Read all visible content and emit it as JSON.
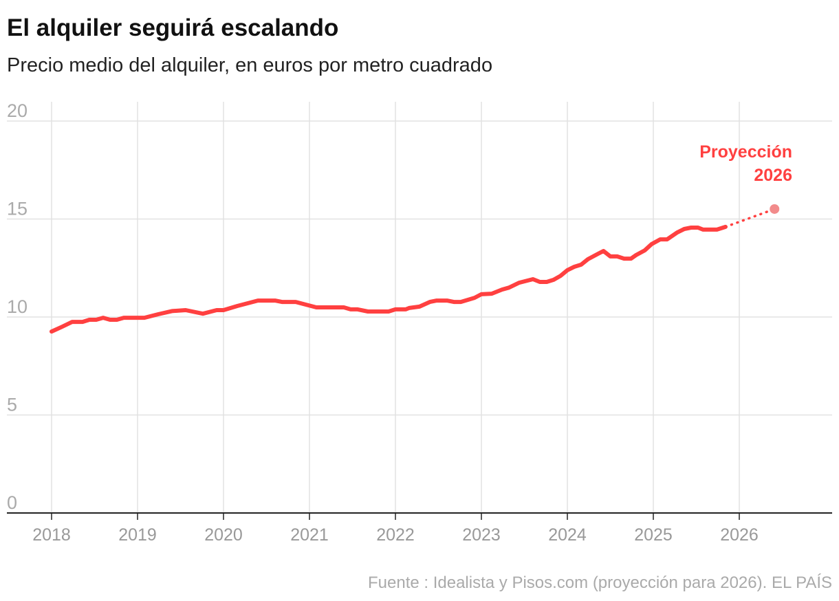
{
  "chart_data": {
    "type": "line",
    "title": "El alquiler seguirá escalando",
    "subtitle": "Precio medio del alquiler, en euros por metro cuadrado",
    "source": "Fuente : Idealista y Pisos.com (proyección para 2026). EL PAÍS",
    "x": [
      2018.0,
      2018.12,
      2018.24,
      2018.36,
      2018.44,
      2018.52,
      2018.6,
      2018.68,
      2018.76,
      2018.84,
      2019.08,
      2019.24,
      2019.4,
      2019.56,
      2019.76,
      2019.92,
      2020.0,
      2020.16,
      2020.4,
      2020.6,
      2020.68,
      2020.84,
      2021.08,
      2021.4,
      2021.48,
      2021.56,
      2021.68,
      2021.92,
      2022.0,
      2022.12,
      2022.16,
      2022.28,
      2022.4,
      2022.48,
      2022.6,
      2022.68,
      2022.76,
      2022.92,
      2023.0,
      2023.12,
      2023.24,
      2023.32,
      2023.44,
      2023.6,
      2023.68,
      2023.76,
      2023.84,
      2023.92,
      2024.0,
      2024.08,
      2024.16,
      2024.24,
      2024.36,
      2024.42,
      2024.5,
      2024.58,
      2024.66,
      2024.74,
      2024.8,
      2024.9,
      2024.98,
      2025.08,
      2025.16,
      2025.28,
      2025.36,
      2025.44,
      2025.52,
      2025.58,
      2025.74,
      2025.84
    ],
    "values": [
      9.26,
      9.5,
      9.75,
      9.75,
      9.86,
      9.86,
      9.96,
      9.86,
      9.86,
      9.96,
      9.96,
      10.14,
      10.3,
      10.35,
      10.17,
      10.35,
      10.35,
      10.56,
      10.84,
      10.84,
      10.77,
      10.77,
      10.49,
      10.49,
      10.39,
      10.39,
      10.28,
      10.28,
      10.39,
      10.39,
      10.46,
      10.53,
      10.77,
      10.84,
      10.84,
      10.77,
      10.77,
      10.98,
      11.16,
      11.19,
      11.4,
      11.5,
      11.75,
      11.93,
      11.79,
      11.79,
      11.9,
      12.1,
      12.39,
      12.56,
      12.67,
      12.95,
      13.23,
      13.37,
      13.09,
      13.09,
      12.98,
      12.98,
      13.16,
      13.4,
      13.72,
      13.96,
      13.96,
      14.32,
      14.49,
      14.56,
      14.56,
      14.46,
      14.46,
      14.6
    ],
    "color": "#ff4040",
    "projection": {
      "x": [
        2025.84,
        2026.41
      ],
      "values": [
        14.6,
        15.51
      ],
      "color": "#f28b8b"
    },
    "annotation": [
      "Proyección",
      "2026"
    ],
    "xlim": [
      2017.48,
      2027.08
    ],
    "xticks": [
      2018,
      2019,
      2020,
      2021,
      2022,
      2023,
      2024,
      2025,
      2026
    ],
    "ylim": [
      0,
      20
    ],
    "yticks": [
      0,
      5,
      10,
      15,
      20
    ],
    "grid": true
  }
}
